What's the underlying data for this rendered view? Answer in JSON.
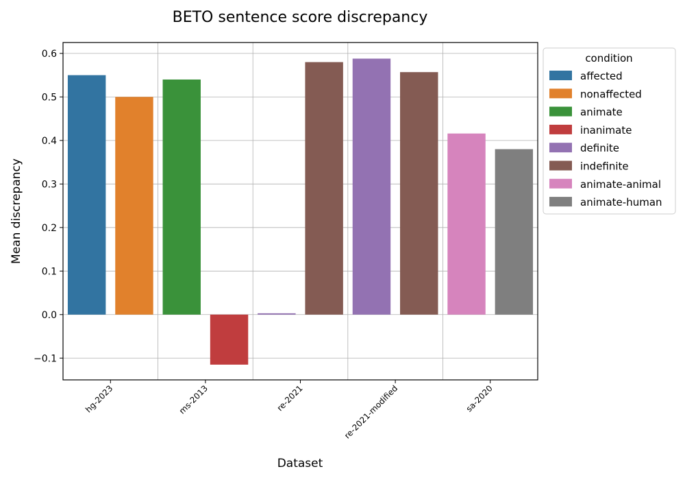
{
  "chart_data": {
    "type": "bar",
    "title": "BETO sentence score discrepancy",
    "xlabel": "Dataset",
    "ylabel": "Mean discrepancy",
    "ylim": [
      -0.15,
      0.625
    ],
    "yticks": [
      -0.1,
      0.0,
      0.1,
      0.2,
      0.3,
      0.4,
      0.5,
      0.6
    ],
    "ytick_labels": [
      "−0.1",
      "0.0",
      "0.1",
      "0.2",
      "0.3",
      "0.4",
      "0.5",
      "0.6"
    ],
    "categories": [
      "hg-2023",
      "ms-2013",
      "re-2021",
      "re-2021-modified",
      "sa-2020"
    ],
    "grid": true,
    "legend": {
      "title": "condition",
      "placement": "outside-right",
      "entries": [
        {
          "label": "affected",
          "color": "#3274a1"
        },
        {
          "label": "nonaffected",
          "color": "#e1812c"
        },
        {
          "label": "animate",
          "color": "#3a923a"
        },
        {
          "label": "inanimate",
          "color": "#c03d3e"
        },
        {
          "label": "definite",
          "color": "#9372b2"
        },
        {
          "label": "indefinite",
          "color": "#845b53"
        },
        {
          "label": "animate-animal",
          "color": "#d684bd"
        },
        {
          "label": "animate-human",
          "color": "#7f7f7f"
        }
      ]
    },
    "bars": [
      {
        "condition": "affected",
        "value": 0.55,
        "color": "#3274a1"
      },
      {
        "condition": "nonaffected",
        "value": 0.5,
        "color": "#e1812c"
      },
      {
        "condition": "animate",
        "value": 0.54,
        "color": "#3a923a"
      },
      {
        "condition": "inanimate",
        "value": -0.115,
        "color": "#c03d3e"
      },
      {
        "condition": "definite",
        "value": 0.003,
        "color": "#9372b2"
      },
      {
        "condition": "indefinite",
        "value": 0.58,
        "color": "#845b53"
      },
      {
        "condition": "definite",
        "value": 0.588,
        "color": "#9372b2"
      },
      {
        "condition": "indefinite",
        "value": 0.557,
        "color": "#845b53"
      },
      {
        "condition": "animate-animal",
        "value": 0.416,
        "color": "#d684bd"
      },
      {
        "condition": "animate-human",
        "value": 0.38,
        "color": "#7f7f7f"
      }
    ]
  }
}
